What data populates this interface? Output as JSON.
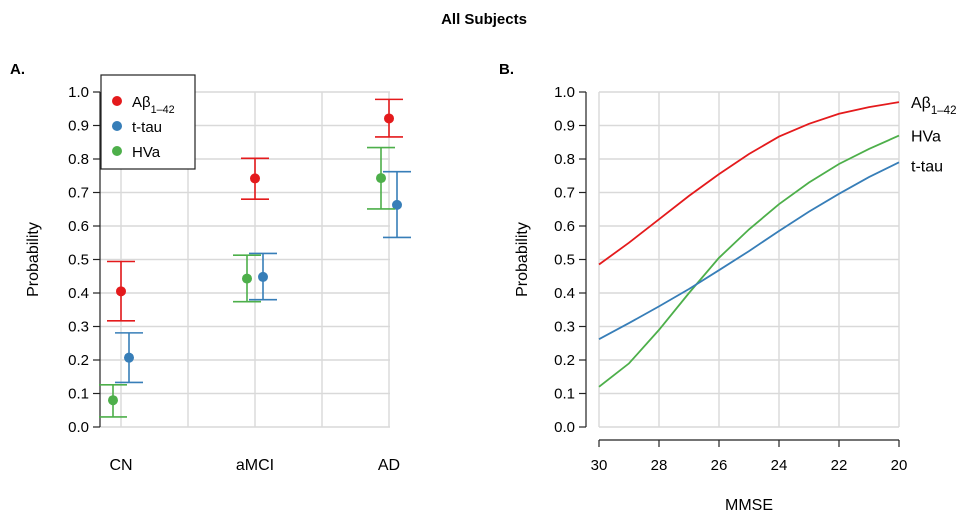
{
  "figure_title": "All Subjects",
  "chart_data": [
    {
      "panel_label": "A.",
      "type": "scatter",
      "subtype": "point-with-errorbars",
      "categories": [
        "CN",
        "aMCI",
        "AD"
      ],
      "ylabel": "Probability",
      "xlabel": "",
      "ylim": [
        0,
        1
      ],
      "yticks": [
        0.0,
        0.1,
        0.2,
        0.3,
        0.4,
        0.5,
        0.6,
        0.7,
        0.8,
        0.9,
        1.0
      ],
      "grid": true,
      "legend_position": "top-left",
      "series": [
        {
          "name": "Aβ",
          "name_sub": "1–42",
          "color": "#e41a1c",
          "values": [
            0.405,
            0.742,
            0.921
          ],
          "lower": [
            0.317,
            0.68,
            0.866
          ],
          "upper": [
            0.494,
            0.802,
            0.978
          ]
        },
        {
          "name": "t-tau",
          "color": "#377eb8",
          "values": [
            0.207,
            0.448,
            0.663
          ],
          "lower": [
            0.133,
            0.38,
            0.566
          ],
          "upper": [
            0.281,
            0.518,
            0.762
          ]
        },
        {
          "name": "HVa",
          "color": "#4daf4a",
          "values": [
            0.08,
            0.443,
            0.743
          ],
          "lower": [
            0.03,
            0.374,
            0.651
          ],
          "upper": [
            0.126,
            0.513,
            0.834
          ]
        }
      ]
    },
    {
      "panel_label": "B.",
      "type": "line",
      "xlabel": "MMSE",
      "ylabel": "Probability",
      "xlim": [
        30,
        20
      ],
      "ylim": [
        0,
        1
      ],
      "xticks": [
        30,
        28,
        26,
        24,
        22,
        20
      ],
      "yticks": [
        0.0,
        0.1,
        0.2,
        0.3,
        0.4,
        0.5,
        0.6,
        0.7,
        0.8,
        0.9,
        1.0
      ],
      "grid": true,
      "legend_position": "right end labels",
      "x": [
        30,
        29,
        28,
        27,
        26,
        25,
        24,
        23,
        22,
        21,
        20
      ],
      "series": [
        {
          "name": "Aβ",
          "name_sub": "1–42",
          "color": "#e41a1c",
          "values": [
            0.485,
            0.55,
            0.62,
            0.69,
            0.755,
            0.815,
            0.867,
            0.905,
            0.935,
            0.955,
            0.97
          ]
        },
        {
          "name": "HVa",
          "color": "#4daf4a",
          "values": [
            0.12,
            0.19,
            0.29,
            0.4,
            0.505,
            0.59,
            0.665,
            0.73,
            0.785,
            0.83,
            0.87
          ]
        },
        {
          "name": "t-tau",
          "color": "#377eb8",
          "values": [
            0.262,
            0.31,
            0.36,
            0.412,
            0.468,
            0.525,
            0.585,
            0.643,
            0.696,
            0.746,
            0.79
          ]
        }
      ]
    }
  ]
}
